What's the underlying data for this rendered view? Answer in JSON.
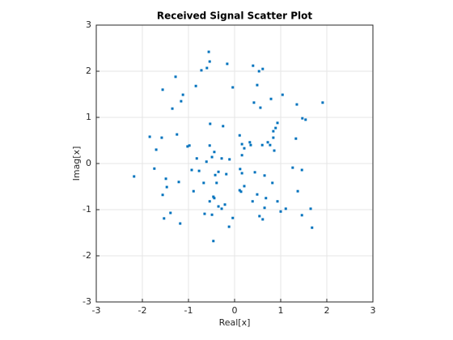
{
  "chart_data": {
    "type": "scatter",
    "title": "Received Signal Scatter Plot",
    "xlabel": "Real[x]",
    "ylabel": "Imag[x]",
    "color": "#0072bd",
    "grid": true,
    "xlim": [
      -3,
      3
    ],
    "ylim": [
      -3,
      3
    ],
    "xticks": [
      -3,
      -2,
      -1,
      0,
      1,
      2,
      3
    ],
    "yticks": [
      -3,
      -2,
      -1,
      0,
      1,
      2,
      3
    ],
    "x": [
      -0.56,
      -0.54,
      -0.16,
      -0.6,
      -0.72,
      0.4,
      0.61,
      0.53,
      -1.28,
      -0.84,
      -0.04,
      0.49,
      -1.56,
      -1.12,
      1.04,
      0.79,
      -1.16,
      0.42,
      0.56,
      1.35,
      -1.35,
      1.91,
      0.93,
      0.89,
      0.84,
      1.47,
      1.54,
      -0.53,
      -0.25,
      -1.84,
      -1.58,
      -1.25,
      0.84,
      0.11,
      1.33,
      -0.98,
      -1.02,
      -1.7,
      -0.54,
      0.16,
      0.21,
      0.35,
      0.33,
      0.6,
      0.72,
      0.77,
      0.86,
      -0.44,
      -0.49,
      -0.82,
      -0.61,
      -0.11,
      0.16,
      -0.28,
      -1.74,
      -0.93,
      0.12,
      1.46,
      1.26,
      -0.77,
      -0.35,
      -0.18,
      -0.42,
      0.16,
      0.44,
      0.65,
      -1.49,
      -1.21,
      -0.39,
      -0.67,
      0.82,
      0.21,
      0.14,
      -0.89,
      -1.47,
      -1.56,
      1.37,
      -0.46,
      -0.44,
      0.11,
      0.49,
      0.68,
      0.39,
      0.93,
      -0.54,
      -0.35,
      -0.21,
      -0.28,
      -0.65,
      -0.49,
      -1.39,
      0.65,
      1.11,
      1.65,
      1.46,
      1.0,
      0.54,
      0.61,
      -1.53,
      -1.18,
      -0.04,
      -0.12,
      1.68,
      -0.46,
      -2.18
    ],
    "values": [
      2.42,
      2.21,
      2.16,
      2.07,
      2.02,
      2.12,
      2.05,
      2.0,
      1.88,
      1.68,
      1.65,
      1.7,
      1.6,
      1.49,
      1.49,
      1.4,
      1.35,
      1.32,
      1.21,
      1.28,
      1.19,
      1.32,
      0.88,
      0.77,
      0.7,
      0.98,
      0.95,
      0.86,
      0.81,
      0.58,
      0.56,
      0.63,
      0.56,
      0.61,
      0.54,
      0.39,
      0.37,
      0.3,
      0.39,
      0.42,
      0.33,
      0.4,
      0.46,
      0.4,
      0.46,
      0.4,
      0.28,
      0.25,
      0.14,
      0.11,
      0.04,
      0.09,
      0.18,
      0.11,
      -0.11,
      -0.14,
      -0.12,
      -0.14,
      -0.09,
      -0.16,
      -0.18,
      -0.23,
      -0.25,
      -0.21,
      -0.19,
      -0.26,
      -0.33,
      -0.4,
      -0.42,
      -0.42,
      -0.42,
      -0.49,
      -0.61,
      -0.6,
      -0.51,
      -0.68,
      -0.6,
      -0.72,
      -0.75,
      -0.58,
      -0.67,
      -0.75,
      -0.82,
      -0.82,
      -0.82,
      -0.93,
      -0.89,
      -0.98,
      -1.09,
      -1.11,
      -1.07,
      -0.96,
      -0.98,
      -0.98,
      -1.12,
      -1.04,
      -1.14,
      -1.21,
      -1.19,
      -1.3,
      -1.18,
      -1.37,
      -1.39,
      -1.68,
      -0.28
    ]
  }
}
